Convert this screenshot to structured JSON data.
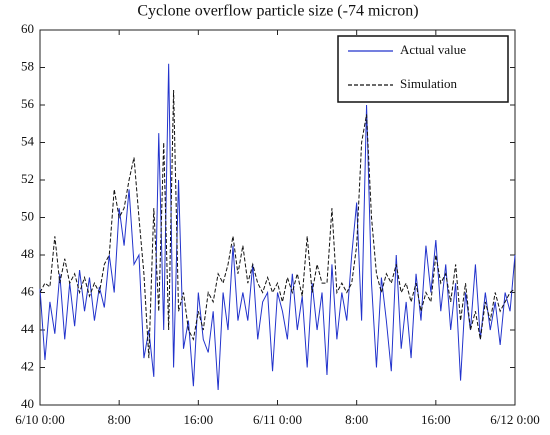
{
  "chart_data": {
    "type": "line",
    "title": "Cyclone overflow particle size (-74 micron)",
    "x": [
      0,
      0.5,
      1,
      1.5,
      2,
      2.5,
      3,
      3.5,
      4,
      4.5,
      5,
      5.5,
      6,
      6.5,
      7,
      7.5,
      8,
      8.5,
      9,
      9.5,
      10,
      10.5,
      11,
      11.5,
      12,
      12.5,
      13,
      13.5,
      14,
      14.5,
      15,
      15.5,
      16,
      16.5,
      17,
      17.5,
      18,
      18.5,
      19,
      19.5,
      20,
      20.5,
      21,
      21.5,
      22,
      22.5,
      23,
      23.5,
      24,
      24.5,
      25,
      25.5,
      26,
      26.5,
      27,
      27.5,
      28,
      28.5,
      29,
      29.5,
      30,
      30.5,
      31,
      31.5,
      32,
      32.5,
      33,
      33.5,
      34,
      34.5,
      35,
      35.5,
      36,
      36.5,
      37,
      37.5,
      38,
      38.5,
      39,
      39.5,
      40,
      40.5,
      41,
      41.5,
      42,
      42.5,
      43,
      43.5,
      44,
      44.5,
      45,
      45.5,
      46,
      46.5,
      47,
      47.5,
      48
    ],
    "series": [
      {
        "name": "Actual value",
        "color": "#2233cc",
        "style": "solid",
        "values": [
          46.2,
          42.4,
          45.5,
          43.8,
          47,
          43.5,
          46.5,
          44.2,
          47.2,
          45,
          46.8,
          44.5,
          46.3,
          45.2,
          48,
          46,
          50.5,
          48.5,
          51.5,
          47.5,
          48,
          42.5,
          44,
          41.5,
          54.5,
          44,
          58.2,
          42,
          52,
          43,
          44.5,
          41,
          46,
          43.5,
          42.8,
          45,
          40.8,
          46,
          44,
          48.5,
          44.5,
          46,
          44.5,
          47.5,
          43.5,
          45.5,
          46,
          41.8,
          46,
          45,
          43.5,
          47,
          44,
          45.8,
          42,
          46.5,
          44,
          46,
          41.6,
          47.5,
          43.5,
          46,
          44.5,
          48,
          50.8,
          44.5,
          56,
          46.5,
          42,
          46.8,
          44.5,
          41.8,
          48,
          43,
          45.5,
          42.5,
          47,
          44.5,
          48.5,
          46,
          48.8,
          45,
          47.5,
          44,
          46.5,
          41.3,
          46,
          44,
          47.5,
          43.5,
          46,
          44,
          45.5,
          43.2,
          46,
          45,
          48
        ]
      },
      {
        "name": "Simulation",
        "color": "#111111",
        "style": "dashed",
        "values": [
          46,
          46.5,
          46.3,
          49,
          46.5,
          47.8,
          46.5,
          47,
          46,
          46.8,
          45.8,
          46.5,
          46,
          47.5,
          48,
          51.5,
          50,
          50.5,
          52,
          53.2,
          50,
          47,
          42.5,
          50.5,
          45,
          54,
          44,
          56.8,
          45,
          46,
          44,
          43.5,
          45,
          44,
          46,
          45.5,
          47,
          46.5,
          47.5,
          49,
          47,
          48.5,
          46.5,
          47.5,
          46.5,
          46,
          46.8,
          46,
          46.5,
          45.5,
          46.8,
          46,
          47,
          45.8,
          49,
          46,
          47.5,
          46.5,
          46.5,
          50.5,
          46,
          46.5,
          46,
          46.5,
          48.5,
          54,
          55.5,
          50,
          47,
          46,
          47,
          46.5,
          47.5,
          46,
          46.5,
          45.5,
          46.5,
          45,
          46,
          45.5,
          48,
          46.5,
          47,
          45.5,
          47.5,
          44.5,
          46.5,
          44,
          45,
          43.5,
          45.5,
          44.5,
          46,
          45,
          45.5,
          46,
          46.2
        ]
      }
    ],
    "xlim": [
      0,
      48
    ],
    "xticks": [
      {
        "value": 0,
        "label": "6/10 0:00"
      },
      {
        "value": 8,
        "label": "8:00"
      },
      {
        "value": 16,
        "label": "16:00"
      },
      {
        "value": 24,
        "label": "6/11 0:00"
      },
      {
        "value": 32,
        "label": "8:00"
      },
      {
        "value": 40,
        "label": "16:00"
      },
      {
        "value": 48,
        "label": "6/12 0:00"
      }
    ],
    "ylim": [
      40,
      60
    ],
    "yticks": [
      40,
      42,
      44,
      46,
      48,
      50,
      52,
      54,
      56,
      58,
      60
    ],
    "grid": false,
    "legend": "upper right"
  }
}
